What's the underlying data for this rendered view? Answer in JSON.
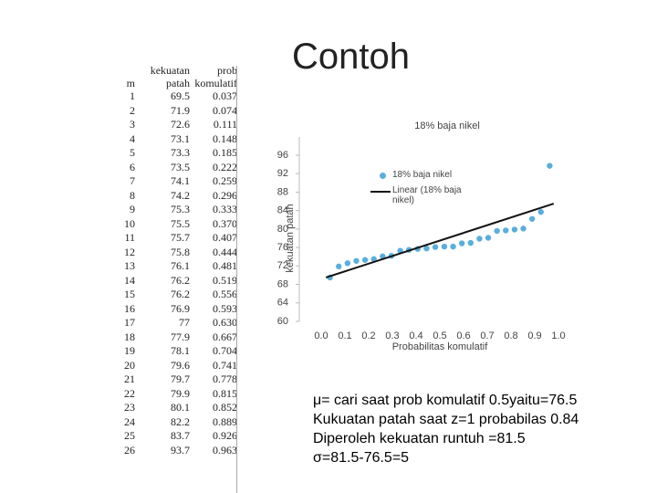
{
  "title": "Contoh",
  "table": {
    "header": [
      "m",
      "kekuatan patah",
      "prob komulatif"
    ],
    "rows": [
      [
        "1",
        "69.5",
        "0.037"
      ],
      [
        "2",
        "71.9",
        "0.074"
      ],
      [
        "3",
        "72.6",
        "0.111"
      ],
      [
        "4",
        "73.1",
        "0.148"
      ],
      [
        "5",
        "73.3",
        "0.185"
      ],
      [
        "6",
        "73.5",
        "0.222"
      ],
      [
        "7",
        "74.1",
        "0.259"
      ],
      [
        "8",
        "74.2",
        "0.296"
      ],
      [
        "9",
        "75.3",
        "0.333"
      ],
      [
        "10",
        "75.5",
        "0.370"
      ],
      [
        "11",
        "75.7",
        "0.407"
      ],
      [
        "12",
        "75.8",
        "0.444"
      ],
      [
        "13",
        "76.1",
        "0.481"
      ],
      [
        "14",
        "76.2",
        "0.519"
      ],
      [
        "15",
        "76.2",
        "0.556"
      ],
      [
        "16",
        "76.9",
        "0.593"
      ],
      [
        "17",
        "77",
        "0.630"
      ],
      [
        "18",
        "77.9",
        "0.667"
      ],
      [
        "19",
        "78.1",
        "0.704"
      ],
      [
        "20",
        "79.6",
        "0.741"
      ],
      [
        "21",
        "79.7",
        "0.778"
      ],
      [
        "22",
        "79.9",
        "0.815"
      ],
      [
        "23",
        "80.1",
        "0.852"
      ],
      [
        "24",
        "82.2",
        "0.889"
      ],
      [
        "25",
        "83.7",
        "0.926"
      ],
      [
        "26",
        "93.7",
        "0.963"
      ]
    ]
  },
  "chart_data": {
    "type": "scatter",
    "title": "18% baja nikel",
    "x_label": "Probabilitas komulatif",
    "y_label": "kekuatan patah",
    "xlim": [
      0,
      1
    ],
    "ylim": [
      60,
      96
    ],
    "xticks": [
      {
        "value": 0,
        "label": "0.0"
      },
      0.1,
      0.2,
      0.3,
      0.4,
      0.5,
      0.6,
      0.7,
      0.8,
      0.9,
      {
        "value": 1,
        "label": "1.0"
      }
    ],
    "yticks": [
      60,
      64,
      68,
      72,
      76,
      80,
      84,
      88,
      92,
      96
    ],
    "series": [
      {
        "name": "18% baja nikel",
        "type": "scatter",
        "color": "#5aaedc",
        "x": [
          0.037,
          0.074,
          0.111,
          0.148,
          0.185,
          0.222,
          0.259,
          0.296,
          0.333,
          0.37,
          0.407,
          0.444,
          0.481,
          0.519,
          0.556,
          0.593,
          0.63,
          0.667,
          0.704,
          0.741,
          0.778,
          0.815,
          0.852,
          0.889,
          0.926,
          0.963
        ],
        "values": [
          69.5,
          71.9,
          72.6,
          73.1,
          73.3,
          73.5,
          74.1,
          74.2,
          75.3,
          75.5,
          75.7,
          75.8,
          76.1,
          76.2,
          76.2,
          76.9,
          77,
          77.9,
          78.1,
          79.6,
          79.7,
          79.9,
          80.1,
          82.2,
          83.7,
          93.7
        ]
      },
      {
        "name": "Linear (18% baja nikel)",
        "type": "line",
        "color": "#111111",
        "x": [
          0.02,
          0.98
        ],
        "values": [
          69.5,
          85.5
        ]
      }
    ]
  },
  "notes": [
    "μ= cari saat prob komulatif 0.5yaitu=76.5",
    "Kukuatan patah saat z=1 probabilas 0.84",
    "Diperoleh kekuatan runtuh =81.5",
    "σ=81.5-76.5=5"
  ]
}
